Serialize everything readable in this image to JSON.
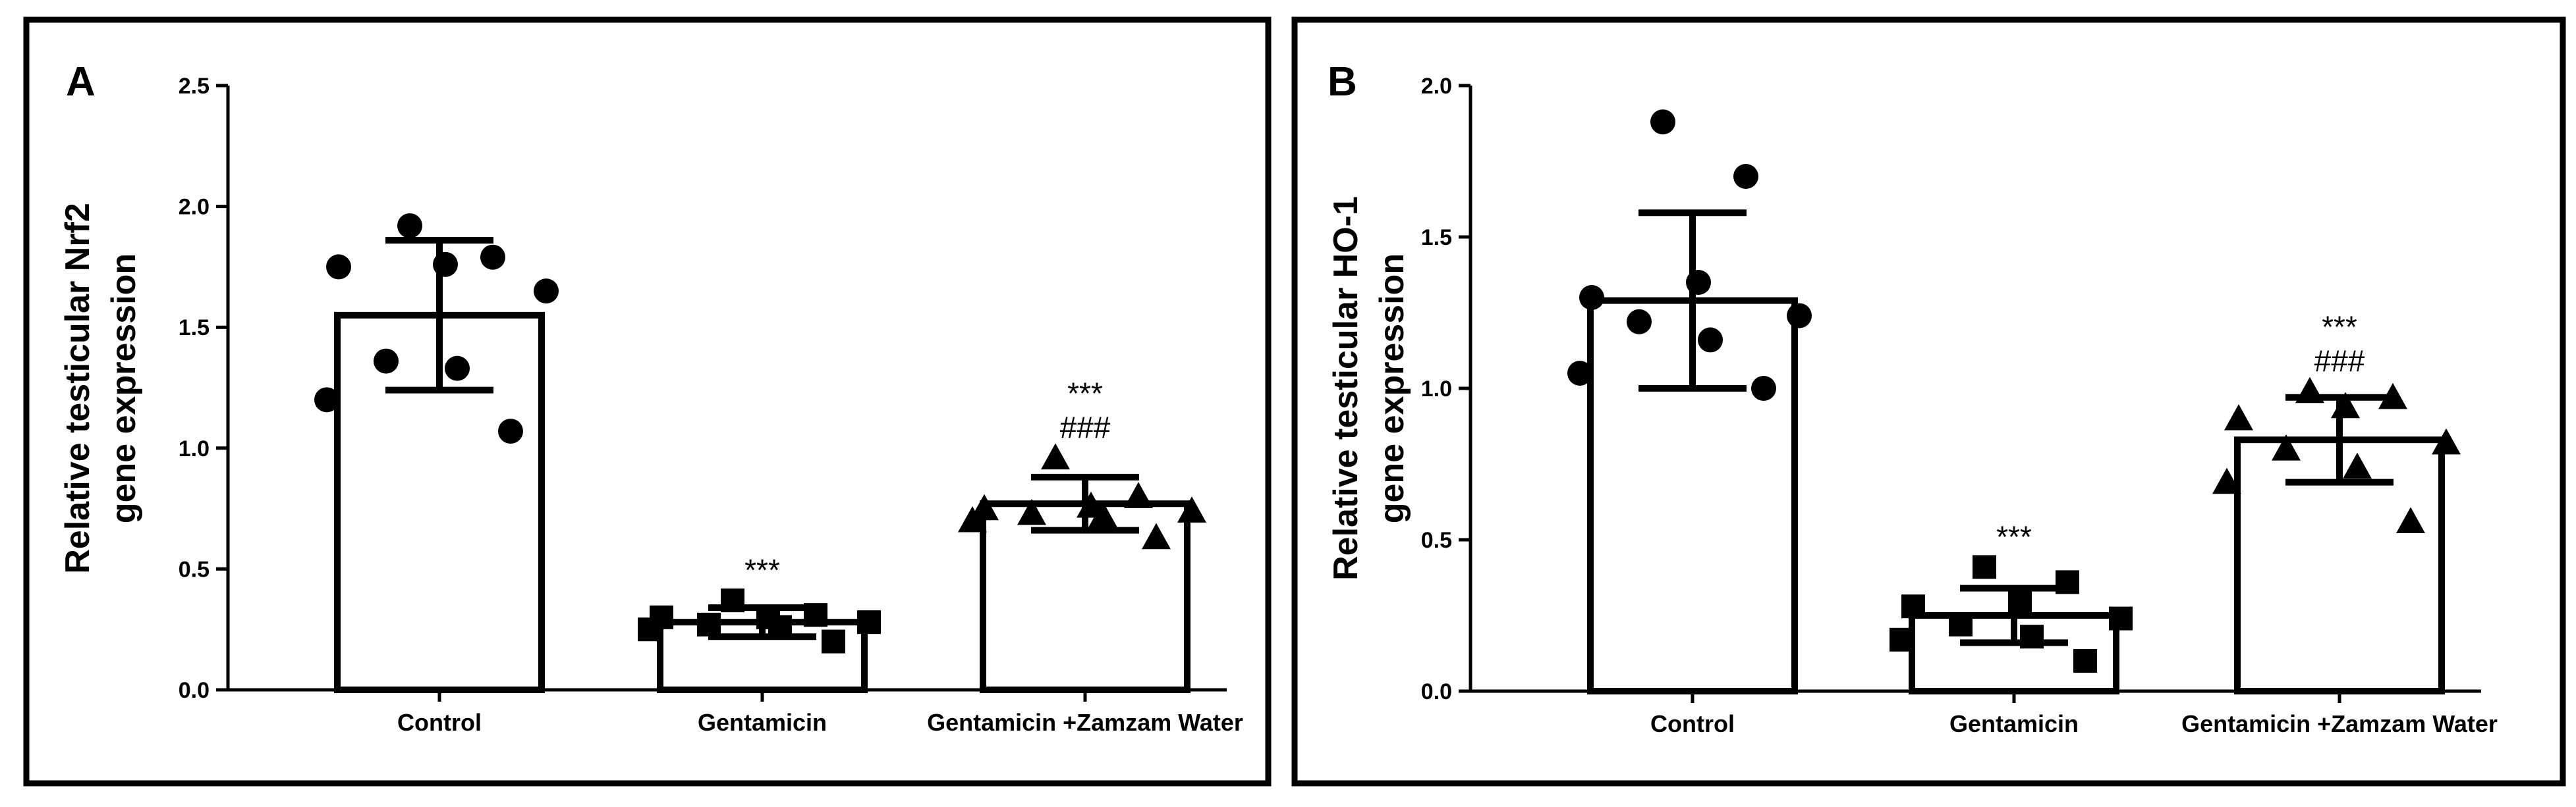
{
  "chart_data": [
    {
      "panel_label": "A",
      "type": "bar",
      "ylabel": [
        "Relative testicular Nrf2",
        "gene expression"
      ],
      "ylim": [
        0,
        2.5
      ],
      "yticks": [
        "0.0",
        "0.5",
        "1.0",
        "1.5",
        "2.0",
        "2.5"
      ],
      "categories": [
        "Control",
        "Gentamicin",
        "Gentamicin +Zamzam Water"
      ],
      "groups": [
        {
          "name": "Control",
          "mean": 1.55,
          "sd": 0.31,
          "marker": "circle",
          "points": [
            1.92,
            1.79,
            1.76,
            1.75,
            1.65,
            1.36,
            1.33,
            1.2,
            1.07
          ],
          "annotations": []
        },
        {
          "name": "Gentamicin",
          "mean": 0.28,
          "sd": 0.06,
          "marker": "square",
          "points": [
            0.37,
            0.31,
            0.3,
            0.3,
            0.28,
            0.27,
            0.26,
            0.25,
            0.2
          ],
          "annotations": [
            "***"
          ]
        },
        {
          "name": "Gentamicin +Zamzam Water",
          "mean": 0.77,
          "sd": 0.11,
          "marker": "triangle",
          "points": [
            0.96,
            0.8,
            0.76,
            0.75,
            0.74,
            0.73,
            0.72,
            0.7,
            0.63
          ],
          "annotations": [
            "***",
            "###"
          ]
        }
      ]
    },
    {
      "panel_label": "B",
      "type": "bar",
      "ylabel": [
        "Relative testicular HO-1",
        "gene expression"
      ],
      "ylim": [
        0,
        2.0
      ],
      "yticks": [
        "0.0",
        "0.5",
        "1.0",
        "1.5",
        "2.0"
      ],
      "categories": [
        "Control",
        "Gentamicin",
        "Gentamicin +Zamzam Water"
      ],
      "groups": [
        {
          "name": "Control",
          "mean": 1.29,
          "sd": 0.29,
          "marker": "circle",
          "points": [
            1.88,
            1.7,
            1.35,
            1.3,
            1.24,
            1.22,
            1.16,
            1.05,
            1.0
          ],
          "annotations": []
        },
        {
          "name": "Gentamicin",
          "mean": 0.25,
          "sd": 0.09,
          "marker": "square",
          "points": [
            0.41,
            0.36,
            0.3,
            0.28,
            0.24,
            0.22,
            0.18,
            0.17,
            0.1
          ],
          "annotations": [
            "***"
          ]
        },
        {
          "name": "Gentamicin +Zamzam Water",
          "mean": 0.83,
          "sd": 0.14,
          "marker": "triangle",
          "points": [
            0.99,
            0.97,
            0.94,
            0.9,
            0.82,
            0.8,
            0.74,
            0.69,
            0.56
          ],
          "annotations": [
            "***",
            "###"
          ]
        }
      ]
    }
  ]
}
